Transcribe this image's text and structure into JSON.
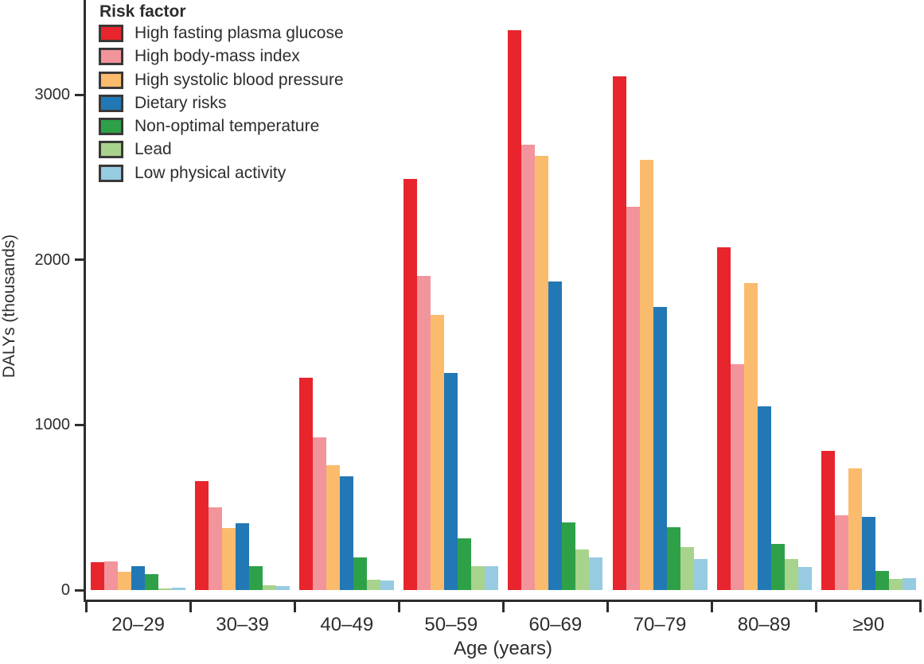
{
  "chart_data": {
    "type": "bar",
    "title": "",
    "xlabel": "Age (years)",
    "ylabel": "DALYs (thousands)",
    "legend_title": "Risk factor",
    "legend_position": "top-left",
    "grid": false,
    "categories": [
      "20–29",
      "30–39",
      "40–49",
      "50–59",
      "60–69",
      "70–79",
      "80–89",
      "≥90"
    ],
    "yticks": [
      0,
      1000,
      2000,
      3000
    ],
    "yticklabels": [
      "0",
      "1000",
      "2000",
      "3000"
    ],
    "ylim": [
      0,
      3570
    ],
    "axis_color": "#2E2D2C",
    "series": [
      {
        "name": "High fasting plasma glucose",
        "color": "#E8242D",
        "values": [
          170,
          660,
          1285,
          2490,
          3390,
          3110,
          2075,
          845
        ]
      },
      {
        "name": "High body-mass index",
        "color": "#F2949B",
        "values": [
          175,
          500,
          925,
          1900,
          2695,
          2320,
          1370,
          455
        ]
      },
      {
        "name": "High systolic blood pressure",
        "color": "#FBBB6D",
        "values": [
          110,
          375,
          755,
          1665,
          2630,
          2605,
          1860,
          735
        ]
      },
      {
        "name": "Dietary risks",
        "color": "#2278B5",
        "values": [
          145,
          405,
          690,
          1315,
          1870,
          1715,
          1115,
          445
        ]
      },
      {
        "name": "Non-optimal temperature",
        "color": "#2EA148",
        "values": [
          98,
          143,
          197,
          315,
          410,
          380,
          278,
          117
        ]
      },
      {
        "name": "Lead",
        "color": "#A8D38D",
        "values": [
          11,
          28,
          64,
          146,
          245,
          262,
          186,
          69
        ]
      },
      {
        "name": "Low physical activity",
        "color": "#97CBE2",
        "values": [
          16,
          24,
          59,
          144,
          197,
          189,
          140,
          73
        ]
      }
    ]
  }
}
